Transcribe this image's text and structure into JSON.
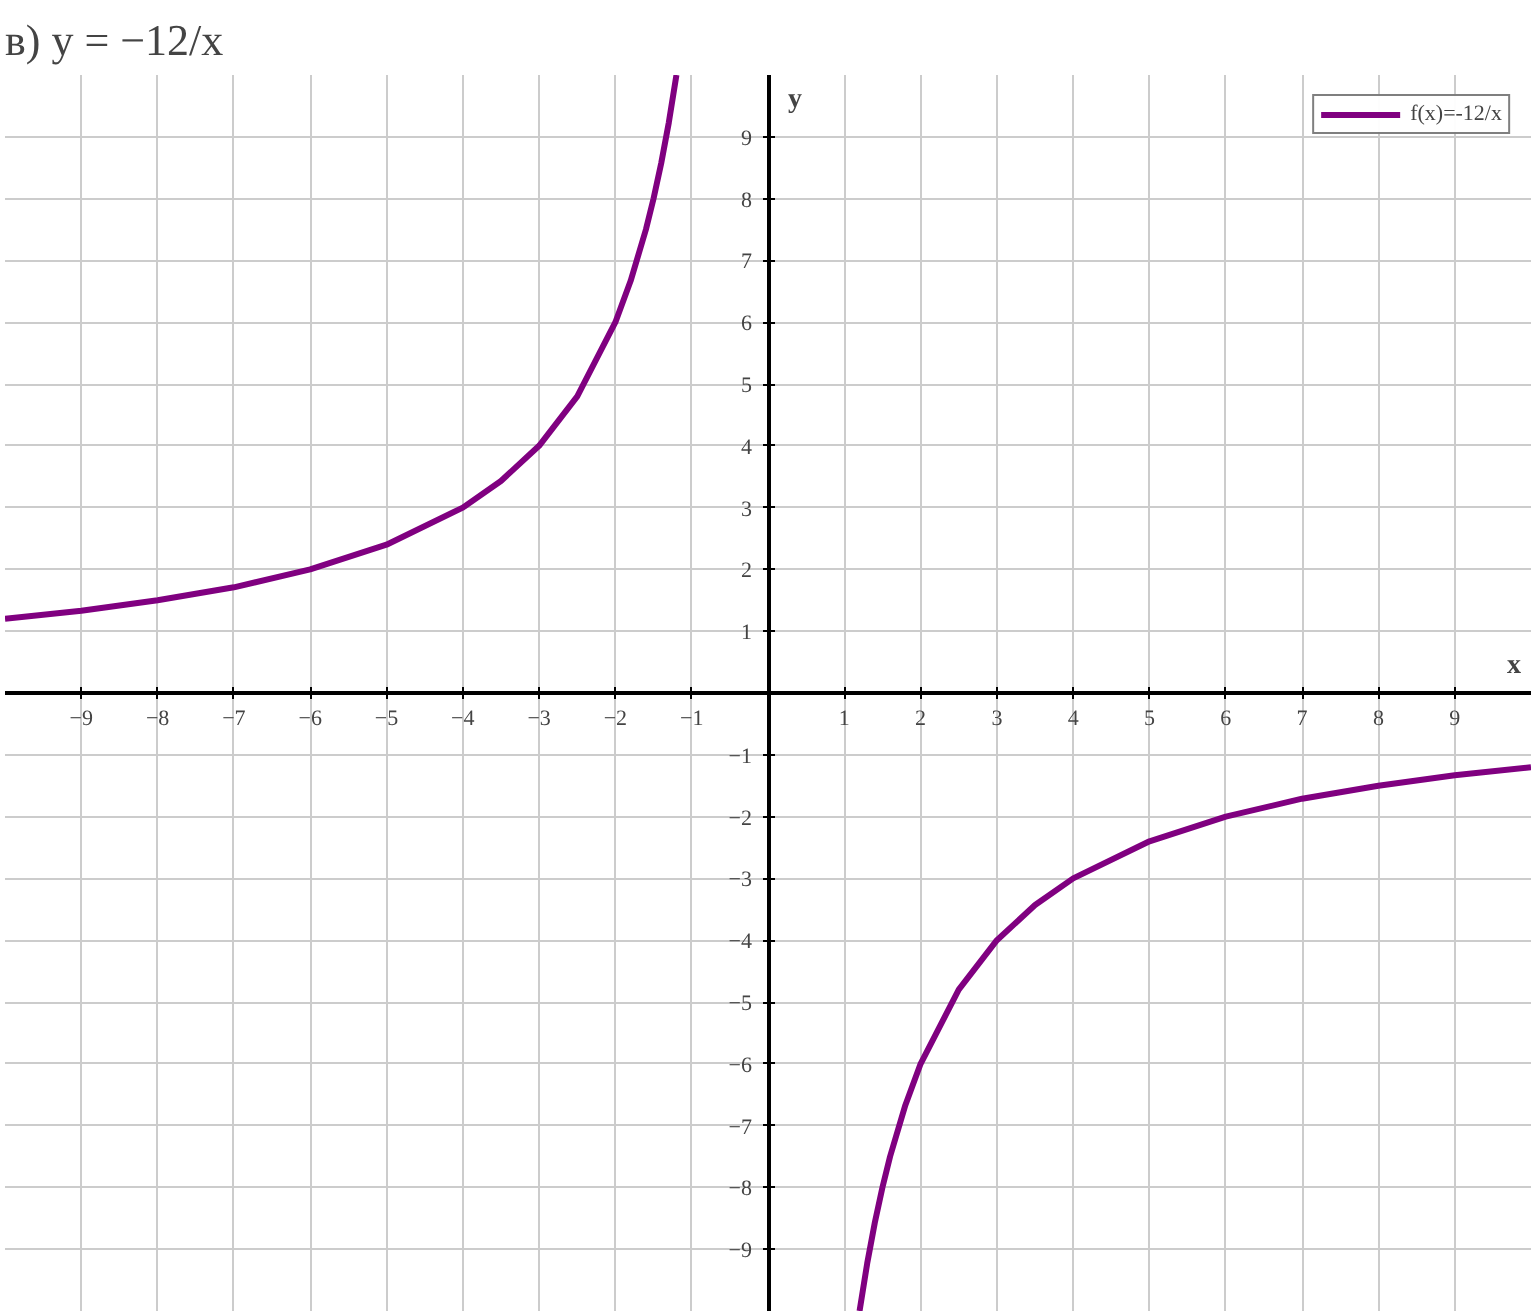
{
  "chart_data": {
    "type": "line",
    "title": "в) y = −12/x",
    "xlabel": "x",
    "ylabel": "y",
    "x": [
      -10,
      -9,
      -8,
      -7,
      -6,
      -5,
      -4,
      -3.5,
      -3,
      -2.5,
      -2,
      -1.8,
      -1.6,
      -1.5,
      -1.4,
      -1.3,
      -1.2,
      0,
      1.2,
      1.3,
      1.4,
      1.5,
      1.6,
      1.8,
      2,
      2.5,
      3,
      3.5,
      4,
      5,
      6,
      7,
      8,
      9,
      10
    ],
    "series": [
      {
        "name": "f(x)=-12/x",
        "color": "#800080",
        "values": [
          1.2,
          1.33,
          1.5,
          1.71,
          2,
          2.4,
          3,
          3.43,
          4,
          4.8,
          6,
          6.67,
          7.5,
          8,
          8.57,
          9.23,
          10,
          null,
          -10,
          -9.23,
          -8.57,
          -8,
          -7.5,
          -6.67,
          -6,
          -4.8,
          -4,
          -3.43,
          -3,
          -2.4,
          -2,
          -1.71,
          -1.5,
          -1.33,
          -1.2
        ]
      }
    ],
    "xlim": [
      -10,
      10
    ],
    "ylim": [
      -10,
      10
    ],
    "xticks": [
      -9,
      -8,
      -7,
      -6,
      -5,
      -4,
      -3,
      -2,
      -1,
      1,
      2,
      3,
      4,
      5,
      6,
      7,
      8,
      9
    ],
    "yticks": [
      -9,
      -8,
      -7,
      -6,
      -5,
      -4,
      -3,
      -2,
      -1,
      1,
      2,
      3,
      4,
      5,
      6,
      7,
      8,
      9
    ],
    "grid": true,
    "legend": "top right",
    "line_style": "solid"
  }
}
